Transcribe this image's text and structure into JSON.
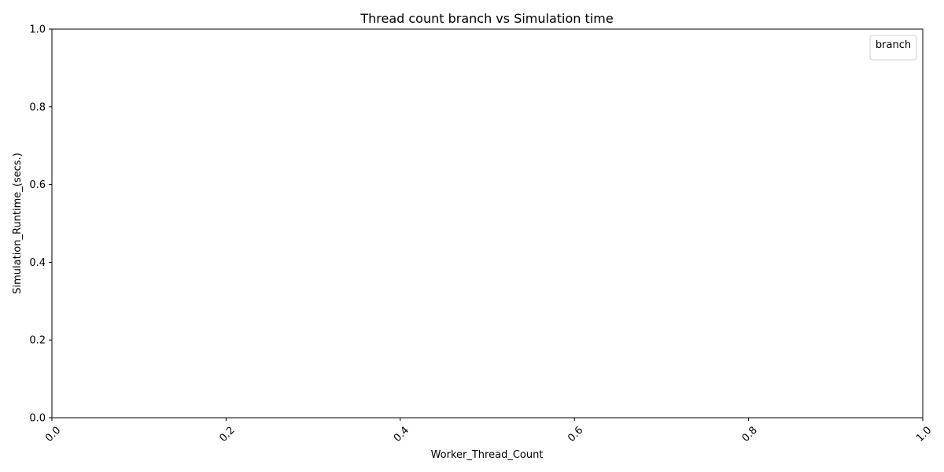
{
  "chart_data": {
    "type": "line",
    "title": "Thread count branch vs Simulation time",
    "xlabel": "Worker_Thread_Count",
    "ylabel": "Simulation_Runtime_(secs.)",
    "xlim": [
      0.0,
      1.0
    ],
    "ylim": [
      0.0,
      1.0
    ],
    "x_ticks": [
      "0.0",
      "0.2",
      "0.4",
      "0.6",
      "0.8",
      "1.0"
    ],
    "y_ticks": [
      "0.0",
      "0.2",
      "0.4",
      "0.6",
      "0.8",
      "1.0"
    ],
    "x_tick_rotation": 45,
    "grid": false,
    "legend": {
      "title": "branch",
      "placement": "top-right",
      "entries": []
    },
    "series": []
  }
}
